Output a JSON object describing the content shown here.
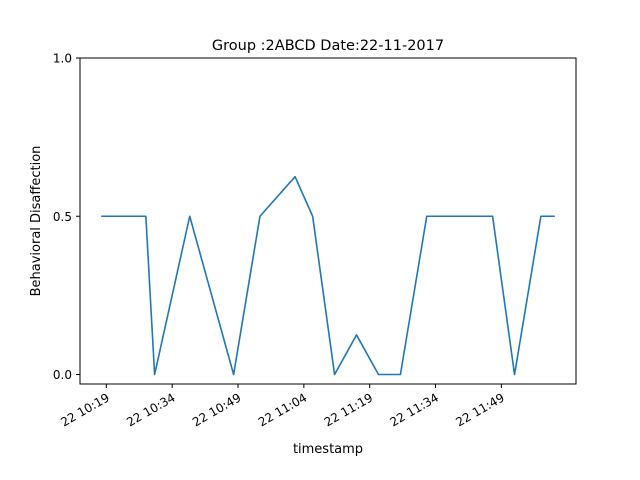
{
  "chart_data": {
    "type": "line",
    "title": "Group :2ABCD Date:22-11-2017",
    "xlabel": "timestamp",
    "ylabel": "Behavioral Disaffection",
    "ylim": [
      -0.03,
      1.0
    ],
    "yticks": [
      0.0,
      0.5,
      1.0
    ],
    "ytick_labels": [
      "0.0",
      "0.5",
      "1.0"
    ],
    "xlim": [
      "2017-11-22 10:13",
      "2017-11-22 12:06"
    ],
    "xticks": [
      "2017-11-22 10:19",
      "2017-11-22 10:34",
      "2017-11-22 10:49",
      "2017-11-22 11:04",
      "2017-11-22 11:19",
      "2017-11-22 11:34",
      "2017-11-22 11:49"
    ],
    "xtick_labels": [
      "22 10:19",
      "22 10:34",
      "22 10:49",
      "22 11:04",
      "22 11:19",
      "22 11:34",
      "22 11:49"
    ],
    "grid": false,
    "series": [
      {
        "color": "#1f77b4",
        "x": [
          "2017-11-22 10:18",
          "2017-11-22 10:28",
          "2017-11-22 10:30",
          "2017-11-22 10:38",
          "2017-11-22 10:48",
          "2017-11-22 10:54",
          "2017-11-22 11:02",
          "2017-11-22 11:06",
          "2017-11-22 11:11",
          "2017-11-22 11:16",
          "2017-11-22 11:21",
          "2017-11-22 11:26",
          "2017-11-22 11:32",
          "2017-11-22 11:47",
          "2017-11-22 11:52",
          "2017-11-22 11:58",
          "2017-11-22 12:01"
        ],
        "y": [
          0.5,
          0.5,
          0.0,
          0.5,
          0.0,
          0.5,
          0.625,
          0.5,
          0.0,
          0.125,
          0.0,
          0.0,
          0.5,
          0.5,
          0.0,
          0.5,
          0.5
        ]
      }
    ]
  }
}
